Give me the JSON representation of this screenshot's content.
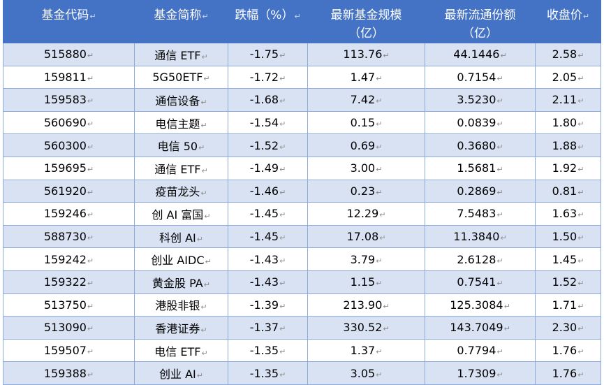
{
  "headers": [
    "基金代码",
    "基金简称",
    "跌幅（%）",
    "最新基金规模\n（亿）",
    "最新流通份额\n（亿）",
    "收盘价"
  ],
  "rows": [
    [
      "515880",
      "通信 ETF",
      "-1.75",
      "113.76",
      "44.1446",
      "2.58"
    ],
    [
      "159811",
      "5G50ETF",
      "-1.72",
      "1.47",
      "0.7154",
      "2.05"
    ],
    [
      "159583",
      "通信设备",
      "-1.68",
      "7.42",
      "3.5230",
      "2.11"
    ],
    [
      "560690",
      "电信主题",
      "-1.54",
      "0.15",
      "0.0839",
      "1.80"
    ],
    [
      "560300",
      "电信 50",
      "-1.52",
      "0.69",
      "0.3680",
      "1.88"
    ],
    [
      "159695",
      "通信 ETF",
      "-1.49",
      "3.00",
      "1.5681",
      "1.92"
    ],
    [
      "561920",
      "疫苗龙头",
      "-1.46",
      "0.23",
      "0.2869",
      "0.81"
    ],
    [
      "159246",
      "创 AI 富国",
      "-1.45",
      "12.29",
      "7.5483",
      "1.63"
    ],
    [
      "588730",
      "科创 AI",
      "-1.45",
      "17.08",
      "11.3840",
      "1.50"
    ],
    [
      "159242",
      "创业 AIDC",
      "-1.43",
      "3.79",
      "2.6128",
      "1.45"
    ],
    [
      "159322",
      "黄金股 PA",
      "-1.43",
      "1.15",
      "0.7541",
      "1.52"
    ],
    [
      "513750",
      "港股非银",
      "-1.39",
      "213.90",
      "125.3084",
      "1.71"
    ],
    [
      "513090",
      "香港证券",
      "-1.37",
      "330.52",
      "143.7049",
      "2.30"
    ],
    [
      "159507",
      "电信 ETF",
      "-1.35",
      "1.37",
      "0.7794",
      "1.76"
    ],
    [
      "159388",
      "创业 AI",
      "-1.35",
      "3.05",
      "1.7309",
      "1.76"
    ]
  ]
}
